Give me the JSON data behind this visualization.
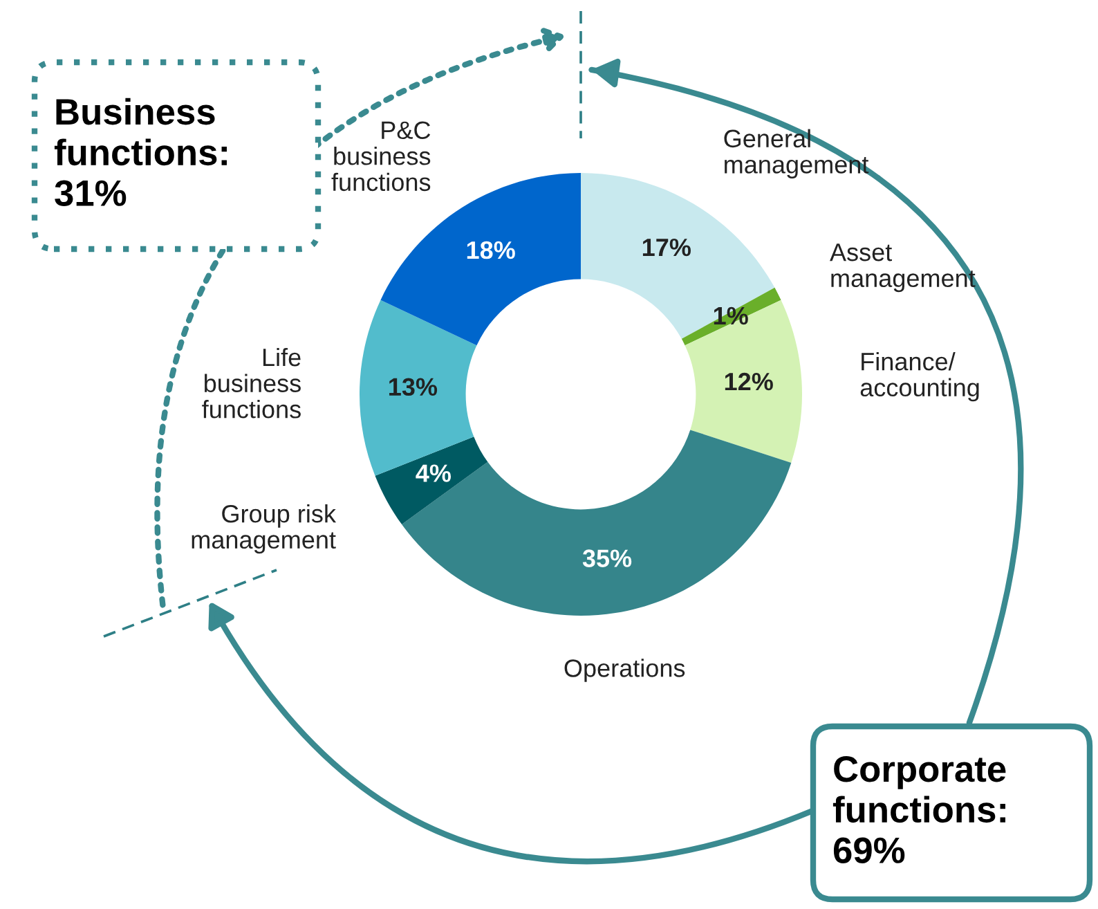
{
  "chart_data": {
    "type": "donut",
    "categories": [
      "General\nmanagement",
      "Asset\nmanagement",
      "Finance/\naccounting",
      "Operations",
      "Group risk\nmanagement",
      "Life\nbusiness\nfunctions",
      "P&C\nbusiness\nfunctions"
    ],
    "values": [
      17,
      1,
      12,
      35,
      4,
      13,
      18
    ],
    "value_labels": [
      "17%",
      "1%",
      "12%",
      "35%",
      "4%",
      "13%",
      "18%"
    ],
    "colors": [
      "#c8e9ee",
      "#6aaf2a",
      "#d4f2b4",
      "#35858b",
      "#005a62",
      "#52bccc",
      "#0066cc"
    ],
    "annotations": [
      "Business\nfunctions:\n31%",
      "Corporate\nfunctions:\n69%"
    ],
    "legend": false
  }
}
